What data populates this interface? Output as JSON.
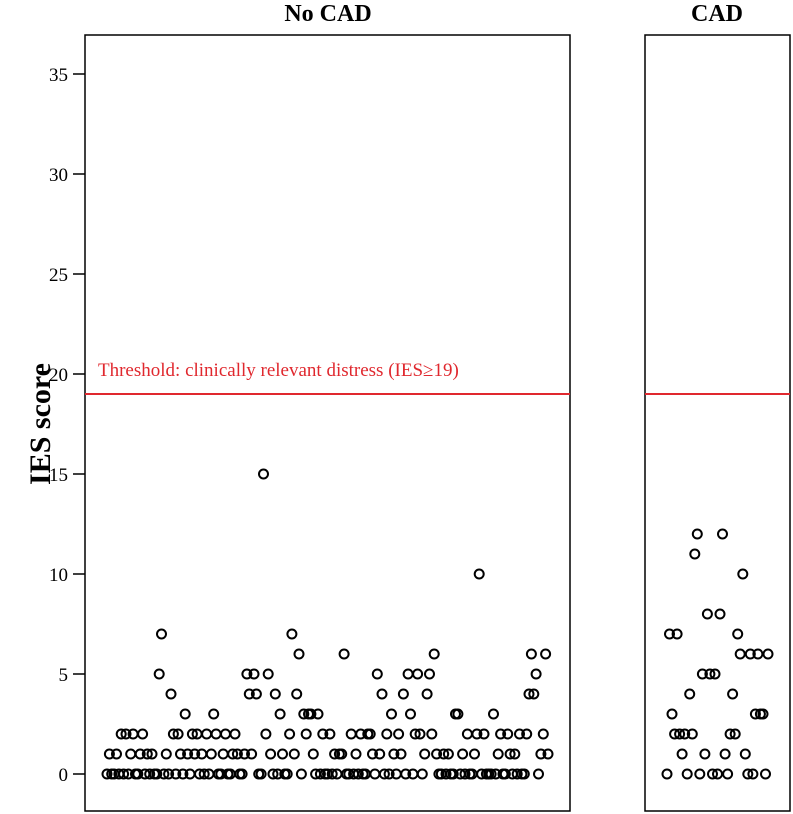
{
  "chart_data": {
    "type": "scatter",
    "ylabel": "IES score",
    "ylim": [
      -1.5,
      37
    ],
    "yticks": [
      "0",
      "5",
      "10",
      "15",
      "20",
      "25",
      "30",
      "35"
    ],
    "ytick_values": [
      0,
      5,
      10,
      15,
      20,
      25,
      30,
      35
    ],
    "threshold": {
      "value": 19,
      "label": "Threshold: clinically relevant distress (IES≥19)",
      "color": "#e0282e"
    },
    "marker_color": "#000000",
    "panels": [
      {
        "title": "No CAD",
        "values": [
          0,
          1,
          0,
          0,
          1,
          0,
          2,
          0,
          2,
          0,
          1,
          2,
          0,
          0,
          1,
          2,
          0,
          1,
          0,
          1,
          0,
          0,
          5,
          7,
          0,
          1,
          0,
          4,
          2,
          0,
          2,
          1,
          0,
          3,
          1,
          0,
          2,
          1,
          2,
          0,
          1,
          0,
          2,
          0,
          1,
          3,
          2,
          0,
          0,
          1,
          2,
          0,
          0,
          1,
          2,
          1,
          0,
          0,
          1,
          5,
          4,
          1,
          5,
          4,
          0,
          0,
          15,
          2,
          5,
          1,
          0,
          4,
          0,
          3,
          1,
          0,
          0,
          2,
          7,
          1,
          4,
          6,
          0,
          3,
          2,
          3,
          3,
          1,
          0,
          3,
          0,
          2,
          0,
          0,
          2,
          0,
          1,
          0,
          1,
          1,
          6,
          0,
          0,
          2,
          0,
          1,
          0,
          2,
          0,
          0,
          2,
          2,
          1,
          0,
          5,
          1,
          4,
          0,
          2,
          0,
          3,
          1,
          0,
          2,
          1,
          4,
          0,
          5,
          3,
          0,
          2,
          5,
          2,
          0,
          1,
          4,
          5,
          2,
          6,
          1,
          0,
          0,
          1,
          0,
          1,
          0,
          0,
          3,
          3,
          0,
          1,
          0,
          2,
          0,
          0,
          1,
          2,
          10,
          0,
          2,
          0,
          0,
          0,
          3,
          0,
          1,
          2,
          0,
          0,
          2,
          1,
          0,
          1,
          0,
          2,
          0,
          0,
          2,
          4,
          6,
          4,
          5,
          0,
          1,
          2,
          6,
          1
        ]
      },
      {
        "title": "CAD",
        "values": [
          0,
          7,
          3,
          2,
          7,
          2,
          1,
          2,
          0,
          4,
          2,
          11,
          12,
          0,
          5,
          1,
          8,
          5,
          0,
          5,
          0,
          8,
          12,
          1,
          0,
          2,
          4,
          2,
          7,
          6,
          10,
          1,
          0,
          6,
          0,
          3,
          6,
          3,
          3,
          0,
          6
        ]
      }
    ]
  }
}
